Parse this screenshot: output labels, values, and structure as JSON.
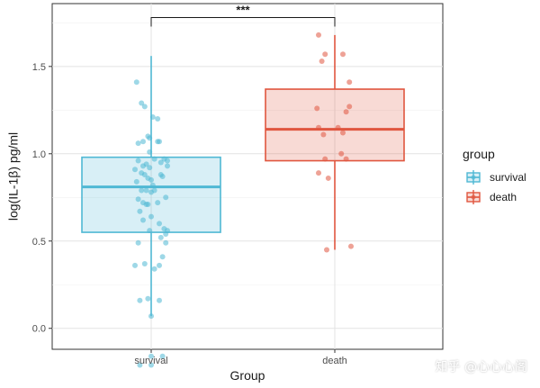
{
  "chart_data": {
    "type": "boxplot",
    "xlabel": "Group",
    "ylabel": "log(IL-1β) pg/ml",
    "ylim": [
      -0.12,
      1.86
    ],
    "yticks": [
      0.0,
      0.5,
      1.0,
      1.5
    ],
    "ytick_labels": [
      "0.0",
      "0.5",
      "1.0",
      "1.5"
    ],
    "categories": [
      "survival",
      "death"
    ],
    "grid": true,
    "legend": {
      "title": "group",
      "position": "right",
      "entries": [
        "survival",
        "death"
      ]
    },
    "significance": {
      "label": "***",
      "between": [
        "survival",
        "death"
      ],
      "y": 1.78
    },
    "series": [
      {
        "name": "survival",
        "color": "#4fb8d4",
        "box": {
          "q1": 0.55,
          "median": 0.81,
          "q3": 0.98,
          "whisker_low": 0.07,
          "whisker_high": 1.56
        },
        "points": [
          {
            "dx": -0.09,
            "y": 1.41
          },
          {
            "dx": -0.06,
            "y": 1.29
          },
          {
            "dx": -0.04,
            "y": 1.27
          },
          {
            "dx": -0.08,
            "y": 1.06
          },
          {
            "dx": -0.05,
            "y": 1.07
          },
          {
            "dx": -0.02,
            "y": 1.1
          },
          {
            "dx": -0.01,
            "y": 1.09
          },
          {
            "dx": 0.01,
            "y": 1.21
          },
          {
            "dx": 0.04,
            "y": 1.2
          },
          {
            "dx": 0.04,
            "y": 1.07
          },
          {
            "dx": 0.05,
            "y": 1.07
          },
          {
            "dx": -0.01,
            "y": 1.01
          },
          {
            "dx": -0.08,
            "y": 0.96
          },
          {
            "dx": -0.05,
            "y": 0.93
          },
          {
            "dx": -0.03,
            "y": 0.94
          },
          {
            "dx": -0.01,
            "y": 0.92
          },
          {
            "dx": 0.02,
            "y": 0.97
          },
          {
            "dx": 0.06,
            "y": 0.95
          },
          {
            "dx": 0.08,
            "y": 0.97
          },
          {
            "dx": 0.1,
            "y": 0.96
          },
          {
            "dx": 0.1,
            "y": 0.93
          },
          {
            "dx": -0.1,
            "y": 0.91
          },
          {
            "dx": -0.06,
            "y": 0.89
          },
          {
            "dx": -0.04,
            "y": 0.88
          },
          {
            "dx": -0.02,
            "y": 0.86
          },
          {
            "dx": 0.0,
            "y": 0.85
          },
          {
            "dx": 0.06,
            "y": 0.88
          },
          {
            "dx": 0.07,
            "y": 0.87
          },
          {
            "dx": -0.09,
            "y": 0.84
          },
          {
            "dx": 0.01,
            "y": 0.82
          },
          {
            "dx": -0.06,
            "y": 0.79
          },
          {
            "dx": -0.03,
            "y": 0.79
          },
          {
            "dx": 0.0,
            "y": 0.78
          },
          {
            "dx": 0.02,
            "y": 0.79
          },
          {
            "dx": 0.09,
            "y": 0.75
          },
          {
            "dx": -0.08,
            "y": 0.74
          },
          {
            "dx": -0.05,
            "y": 0.72
          },
          {
            "dx": -0.03,
            "y": 0.71
          },
          {
            "dx": -0.02,
            "y": 0.71
          },
          {
            "dx": 0.04,
            "y": 0.72
          },
          {
            "dx": -0.07,
            "y": 0.67
          },
          {
            "dx": 0.0,
            "y": 0.64
          },
          {
            "dx": 0.05,
            "y": 0.6
          },
          {
            "dx": -0.05,
            "y": 0.62
          },
          {
            "dx": 0.08,
            "y": 0.57
          },
          {
            "dx": 0.1,
            "y": 0.56
          },
          {
            "dx": 0.09,
            "y": 0.54
          },
          {
            "dx": -0.01,
            "y": 0.56
          },
          {
            "dx": 0.06,
            "y": 0.52
          },
          {
            "dx": -0.08,
            "y": 0.49
          },
          {
            "dx": 0.09,
            "y": 0.49
          },
          {
            "dx": 0.07,
            "y": 0.41
          },
          {
            "dx": -0.1,
            "y": 0.36
          },
          {
            "dx": -0.04,
            "y": 0.37
          },
          {
            "dx": 0.02,
            "y": 0.34
          },
          {
            "dx": 0.05,
            "y": 0.36
          },
          {
            "dx": -0.07,
            "y": 0.16
          },
          {
            "dx": -0.02,
            "y": 0.17
          },
          {
            "dx": 0.05,
            "y": 0.16
          },
          {
            "dx": 0.0,
            "y": 0.07
          },
          {
            "dx": 0.0,
            "y": -0.16
          },
          {
            "dx": 0.07,
            "y": -0.16
          },
          {
            "dx": -0.07,
            "y": -0.21
          },
          {
            "dx": 0.0,
            "y": -0.21
          }
        ]
      },
      {
        "name": "death",
        "color": "#e0563f",
        "box": {
          "q1": 0.96,
          "median": 1.14,
          "q3": 1.37,
          "whisker_low": 0.45,
          "whisker_high": 1.68
        },
        "points": [
          {
            "dx": -0.1,
            "y": 1.68
          },
          {
            "dx": -0.06,
            "y": 1.57
          },
          {
            "dx": 0.05,
            "y": 1.57
          },
          {
            "dx": -0.08,
            "y": 1.53
          },
          {
            "dx": 0.09,
            "y": 1.41
          },
          {
            "dx": -0.11,
            "y": 1.26
          },
          {
            "dx": 0.09,
            "y": 1.27
          },
          {
            "dx": 0.07,
            "y": 1.24
          },
          {
            "dx": -0.1,
            "y": 1.15
          },
          {
            "dx": 0.02,
            "y": 1.15
          },
          {
            "dx": 0.05,
            "y": 1.12
          },
          {
            "dx": -0.07,
            "y": 1.11
          },
          {
            "dx": 0.04,
            "y": 1.0
          },
          {
            "dx": -0.06,
            "y": 0.97
          },
          {
            "dx": 0.07,
            "y": 0.97
          },
          {
            "dx": -0.1,
            "y": 0.89
          },
          {
            "dx": -0.04,
            "y": 0.86
          },
          {
            "dx": 0.1,
            "y": 0.47
          },
          {
            "dx": -0.05,
            "y": 0.45
          }
        ]
      }
    ]
  },
  "watermark": "知乎 @心心心阁"
}
